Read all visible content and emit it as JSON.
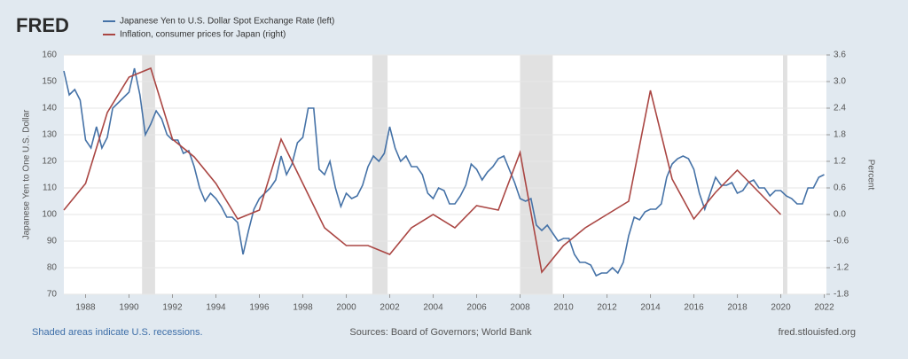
{
  "chart_data": {
    "type": "line",
    "logo": "FRED",
    "ylabel": "Japanese Yen to One U.S. Dollar",
    "y2label": "Percent",
    "note": "Shaded areas indicate U.S. recessions.",
    "source": "Sources: Board of Governors; World Bank",
    "site": "fred.stlouisfed.org",
    "xlim": [
      1987,
      2022.1
    ],
    "xticks": [
      1988,
      1990,
      1992,
      1994,
      1996,
      1998,
      2000,
      2002,
      2004,
      2006,
      2008,
      2010,
      2012,
      2014,
      2016,
      2018,
      2020,
      2022
    ],
    "ylim": [
      70,
      160
    ],
    "yticks": [
      70,
      80,
      90,
      100,
      110,
      120,
      130,
      140,
      150,
      160
    ],
    "y2lim": [
      -1.8,
      3.6
    ],
    "y2ticks": [
      -1.8,
      -1.2,
      -0.6,
      {
        "value": 0,
        "label": "0.0"
      },
      0.6,
      1.2,
      1.8,
      2.4,
      {
        "value": 3,
        "label": "3.0"
      },
      3.6
    ],
    "grid": true,
    "recessions": [
      [
        1990.6,
        1991.2
      ],
      [
        2001.2,
        2001.9
      ],
      [
        2008.0,
        2009.5
      ],
      [
        2020.1,
        2020.3
      ]
    ],
    "recession_color": "#e1e1e1",
    "series": [
      {
        "name": "Japanese Yen to U.S. Dollar Spot Exchange Rate (left)",
        "color": "#4572a7",
        "x": [
          1987,
          1987.25,
          1987.5,
          1987.75,
          1988,
          1988.25,
          1988.5,
          1988.75,
          1989,
          1989.25,
          1989.5,
          1989.75,
          1990,
          1990.25,
          1990.5,
          1990.75,
          1991,
          1991.25,
          1991.5,
          1991.75,
          1992,
          1992.25,
          1992.5,
          1992.75,
          1993,
          1993.25,
          1993.5,
          1993.75,
          1994,
          1994.25,
          1994.5,
          1994.75,
          1995,
          1995.25,
          1995.5,
          1995.75,
          1996,
          1996.25,
          1996.5,
          1996.75,
          1997,
          1997.25,
          1997.5,
          1997.75,
          1998,
          1998.25,
          1998.5,
          1998.75,
          1999,
          1999.25,
          1999.5,
          1999.75,
          2000,
          2000.25,
          2000.5,
          2000.75,
          2001,
          2001.25,
          2001.5,
          2001.75,
          2002,
          2002.25,
          2002.5,
          2002.75,
          2003,
          2003.25,
          2003.5,
          2003.75,
          2004,
          2004.25,
          2004.5,
          2004.75,
          2005,
          2005.25,
          2005.5,
          2005.75,
          2006,
          2006.25,
          2006.5,
          2006.75,
          2007,
          2007.25,
          2007.5,
          2007.75,
          2008,
          2008.25,
          2008.5,
          2008.75,
          2009,
          2009.25,
          2009.5,
          2009.75,
          2010,
          2010.25,
          2010.5,
          2010.75,
          2011,
          2011.25,
          2011.5,
          2011.75,
          2012,
          2012.25,
          2012.5,
          2012.75,
          2013,
          2013.25,
          2013.5,
          2013.75,
          2014,
          2014.25,
          2014.5,
          2014.75,
          2015,
          2015.25,
          2015.5,
          2015.75,
          2016,
          2016.25,
          2016.5,
          2016.75,
          2017,
          2017.25,
          2017.5,
          2017.75,
          2018,
          2018.25,
          2018.5,
          2018.75,
          2019,
          2019.25,
          2019.5,
          2019.75,
          2020,
          2020.25,
          2020.5,
          2020.75,
          2021,
          2021.25,
          2021.5,
          2021.75,
          2022
        ],
        "values": [
          154,
          145,
          147,
          143,
          128,
          125,
          133,
          125,
          129,
          140,
          142,
          144,
          146,
          155,
          145,
          130,
          134,
          139,
          136,
          130,
          128,
          128,
          123,
          124,
          118,
          110,
          105,
          108,
          106,
          103,
          99,
          99,
          97,
          85,
          94,
          102,
          106,
          108,
          110,
          113,
          122,
          115,
          119,
          127,
          129,
          140,
          140,
          117,
          115,
          120,
          110,
          103,
          108,
          106,
          107,
          111,
          118,
          122,
          120,
          123,
          133,
          125,
          120,
          122,
          118,
          118,
          115,
          108,
          106,
          110,
          109,
          104,
          104,
          107,
          111,
          119,
          117,
          113,
          116,
          118,
          121,
          122,
          117,
          112,
          106,
          105,
          106,
          96,
          94,
          96,
          93,
          90,
          91,
          91,
          85,
          82,
          82,
          81,
          77,
          78,
          78,
          80,
          78,
          82,
          92,
          99,
          98,
          101,
          102,
          102,
          104,
          114,
          119,
          121,
          122,
          121,
          117,
          108,
          102,
          108,
          114,
          111,
          111,
          112,
          108,
          109,
          112,
          113,
          110,
          110,
          107,
          109,
          109,
          107,
          106,
          104,
          104,
          110,
          110,
          114,
          115
        ]
      },
      {
        "name": "Inflation, consumer prices for Japan (right)",
        "color": "#aa4643",
        "axis": "y2",
        "x": [
          1987,
          1988,
          1989,
          1990,
          1991,
          1992,
          1993,
          1994,
          1995,
          1996,
          1997,
          1998,
          1999,
          2000,
          2001,
          2002,
          2003,
          2004,
          2005,
          2006,
          2007,
          2008,
          2009,
          2010,
          2011,
          2012,
          2013,
          2014,
          2015,
          2016,
          2017,
          2018,
          2019,
          2020
        ],
        "values": [
          0.1,
          0.7,
          2.3,
          3.1,
          3.3,
          1.7,
          1.3,
          0.7,
          -0.1,
          0.1,
          1.7,
          0.7,
          -0.3,
          -0.7,
          -0.7,
          -0.9,
          -0.3,
          0.0,
          -0.3,
          0.2,
          0.1,
          1.4,
          -1.3,
          -0.7,
          -0.3,
          0.0,
          0.3,
          2.8,
          0.8,
          -0.1,
          0.5,
          1.0,
          0.5,
          0.0
        ]
      }
    ]
  }
}
